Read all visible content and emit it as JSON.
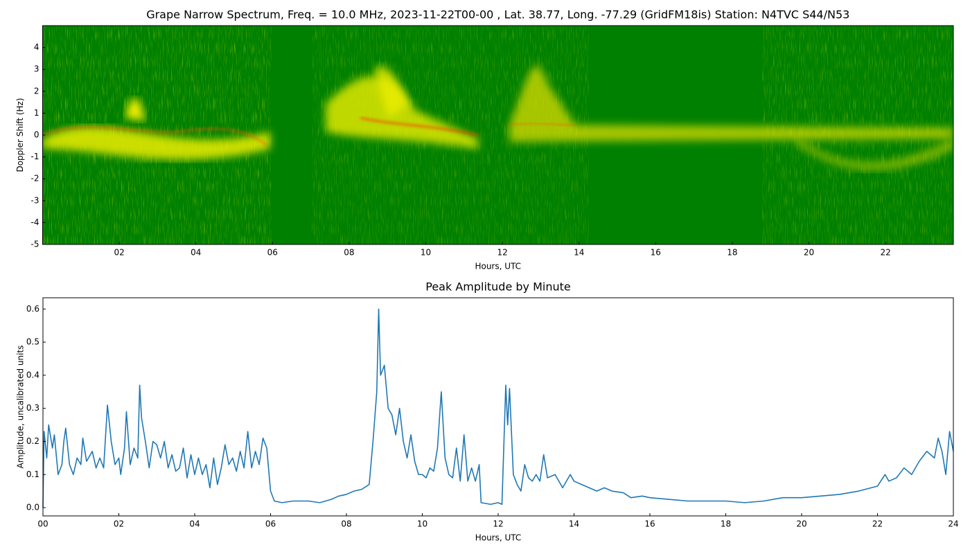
{
  "chart_data": [
    {
      "type": "spectrogram",
      "title": "Grape Narrow Spectrum, Freq. = 10.0 MHz, 2023-11-22T00-00 , Lat.  38.77, Long. -77.29 (GridFM18is) Station: N4TVC S44/N53",
      "x_label": "Hours, UTC",
      "y_label": "Doppler Shift (Hz)",
      "xlim": [
        0,
        23.77
      ],
      "ylim": [
        -5,
        5
      ],
      "xticks": [
        {
          "value": 2,
          "label": "02"
        },
        {
          "value": 4,
          "label": "04"
        },
        {
          "value": 6,
          "label": "06"
        },
        {
          "value": 8,
          "label": "08"
        },
        {
          "value": 10,
          "label": "10"
        },
        {
          "value": 12,
          "label": "12"
        },
        {
          "value": 14,
          "label": "14"
        },
        {
          "value": 16,
          "label": "16"
        },
        {
          "value": 18,
          "label": "18"
        },
        {
          "value": 20,
          "label": "20"
        },
        {
          "value": 22,
          "label": "22"
        }
      ],
      "yticks": [
        -5,
        -4,
        -3,
        -2,
        -1,
        0,
        1,
        2,
        3,
        4
      ]
    },
    {
      "type": "line",
      "title": "Peak Amplitude by Minute",
      "x_label": "Hours, UTC",
      "y_label": "Amplitude, uncalibrated units",
      "color": "#1f77b4",
      "xlim": [
        0,
        24
      ],
      "ylim": [
        -0.025,
        0.634
      ],
      "xticks": [
        {
          "value": 0,
          "label": "00"
        },
        {
          "value": 2,
          "label": "02"
        },
        {
          "value": 4,
          "label": "04"
        },
        {
          "value": 6,
          "label": "06"
        },
        {
          "value": 8,
          "label": "08"
        },
        {
          "value": 10,
          "label": "10"
        },
        {
          "value": 12,
          "label": "12"
        },
        {
          "value": 14,
          "label": "14"
        },
        {
          "value": 16,
          "label": "16"
        },
        {
          "value": 18,
          "label": "18"
        },
        {
          "value": 20,
          "label": "20"
        },
        {
          "value": 22,
          "label": "22"
        },
        {
          "value": 24,
          "label": "24"
        }
      ],
      "yticks": [
        {
          "value": 0,
          "label": "0.0"
        },
        0.1,
        0.2,
        0.3,
        0.4,
        0.5,
        0.6
      ],
      "x": [
        0,
        0.03,
        0.1,
        0.15,
        0.25,
        0.3,
        0.4,
        0.5,
        0.55,
        0.6,
        0.7,
        0.8,
        0.9,
        1.0,
        1.05,
        1.15,
        1.3,
        1.4,
        1.5,
        1.6,
        1.7,
        1.8,
        1.9,
        2.0,
        2.05,
        2.15,
        2.2,
        2.3,
        2.4,
        2.5,
        2.55,
        2.6,
        2.7,
        2.8,
        2.9,
        3.0,
        3.1,
        3.2,
        3.3,
        3.4,
        3.5,
        3.6,
        3.7,
        3.8,
        3.9,
        4.0,
        4.1,
        4.2,
        4.3,
        4.4,
        4.5,
        4.6,
        4.7,
        4.8,
        4.9,
        5.0,
        5.1,
        5.2,
        5.3,
        5.4,
        5.5,
        5.6,
        5.7,
        5.8,
        5.9,
        6.0,
        6.1,
        6.3,
        6.6,
        7.0,
        7.3,
        7.6,
        7.8,
        8.0,
        8.2,
        8.4,
        8.6,
        8.7,
        8.8,
        8.85,
        8.9,
        9.0,
        9.1,
        9.2,
        9.3,
        9.4,
        9.5,
        9.6,
        9.7,
        9.8,
        9.9,
        10.0,
        10.1,
        10.2,
        10.3,
        10.4,
        10.5,
        10.6,
        10.7,
        10.8,
        10.9,
        11.0,
        11.1,
        11.2,
        11.3,
        11.4,
        11.5,
        11.55,
        11.8,
        12.0,
        12.1,
        12.2,
        12.25,
        12.3,
        12.4,
        12.5,
        12.6,
        12.7,
        12.8,
        12.9,
        13.0,
        13.1,
        13.2,
        13.3,
        13.5,
        13.7,
        13.9,
        14.0,
        14.2,
        14.4,
        14.6,
        14.8,
        15.0,
        15.3,
        15.5,
        15.8,
        16.0,
        16.5,
        17.0,
        17.5,
        18.0,
        18.5,
        19.0,
        19.5,
        20.0,
        20.5,
        21.0,
        21.5,
        22.0,
        22.2,
        22.3,
        22.5,
        22.7,
        22.9,
        23.1,
        23.3,
        23.5,
        23.6,
        23.7,
        23.8,
        23.9,
        24.0
      ],
      "values": [
        0.0,
        0.23,
        0.15,
        0.25,
        0.18,
        0.22,
        0.1,
        0.13,
        0.2,
        0.24,
        0.13,
        0.1,
        0.15,
        0.13,
        0.21,
        0.14,
        0.17,
        0.12,
        0.15,
        0.12,
        0.31,
        0.2,
        0.13,
        0.15,
        0.1,
        0.18,
        0.29,
        0.13,
        0.18,
        0.15,
        0.37,
        0.27,
        0.2,
        0.12,
        0.2,
        0.19,
        0.15,
        0.2,
        0.12,
        0.16,
        0.11,
        0.12,
        0.18,
        0.09,
        0.16,
        0.1,
        0.15,
        0.1,
        0.13,
        0.06,
        0.15,
        0.07,
        0.12,
        0.19,
        0.13,
        0.15,
        0.11,
        0.17,
        0.12,
        0.23,
        0.12,
        0.17,
        0.13,
        0.21,
        0.18,
        0.05,
        0.02,
        0.015,
        0.02,
        0.02,
        0.015,
        0.025,
        0.035,
        0.04,
        0.05,
        0.055,
        0.07,
        0.2,
        0.35,
        0.6,
        0.4,
        0.43,
        0.3,
        0.28,
        0.22,
        0.3,
        0.2,
        0.15,
        0.22,
        0.14,
        0.1,
        0.1,
        0.09,
        0.12,
        0.11,
        0.18,
        0.35,
        0.15,
        0.1,
        0.09,
        0.18,
        0.08,
        0.22,
        0.08,
        0.12,
        0.08,
        0.13,
        0.015,
        0.01,
        0.015,
        0.01,
        0.37,
        0.25,
        0.36,
        0.1,
        0.07,
        0.05,
        0.13,
        0.09,
        0.08,
        0.1,
        0.08,
        0.16,
        0.09,
        0.1,
        0.06,
        0.1,
        0.08,
        0.07,
        0.06,
        0.05,
        0.06,
        0.05,
        0.045,
        0.03,
        0.035,
        0.03,
        0.025,
        0.02,
        0.02,
        0.02,
        0.015,
        0.02,
        0.03,
        0.03,
        0.035,
        0.04,
        0.05,
        0.065,
        0.1,
        0.08,
        0.09,
        0.12,
        0.1,
        0.14,
        0.17,
        0.15,
        0.21,
        0.17,
        0.1,
        0.23,
        0.17
      ]
    }
  ]
}
